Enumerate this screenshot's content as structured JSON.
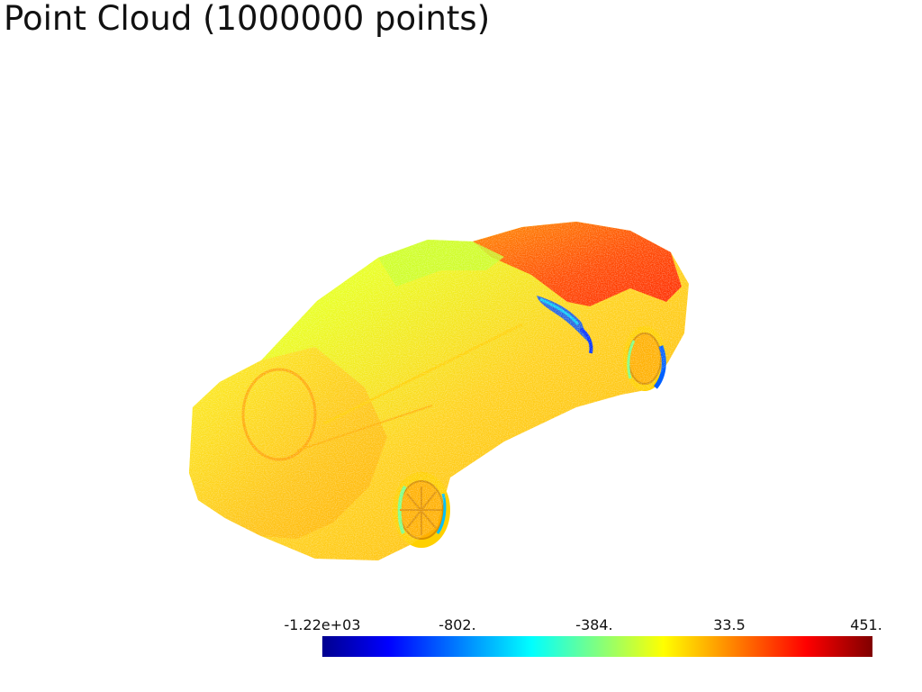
{
  "title": "Point Cloud (1000000 points)",
  "colorbar": {
    "labels": [
      "-1.22e+03",
      "-802.",
      "-384.",
      "33.5",
      "451."
    ],
    "colormap": [
      "#00008f",
      "#0000ff",
      "#0080ff",
      "#00ffff",
      "#80ff80",
      "#ffff00",
      "#ff8000",
      "#ff0000",
      "#800000"
    ]
  },
  "scene": {
    "object": "car-point-cloud",
    "dominant_colors": [
      "#ffd21a",
      "#ffb400",
      "#c8ff2a",
      "#ff4a00"
    ]
  }
}
